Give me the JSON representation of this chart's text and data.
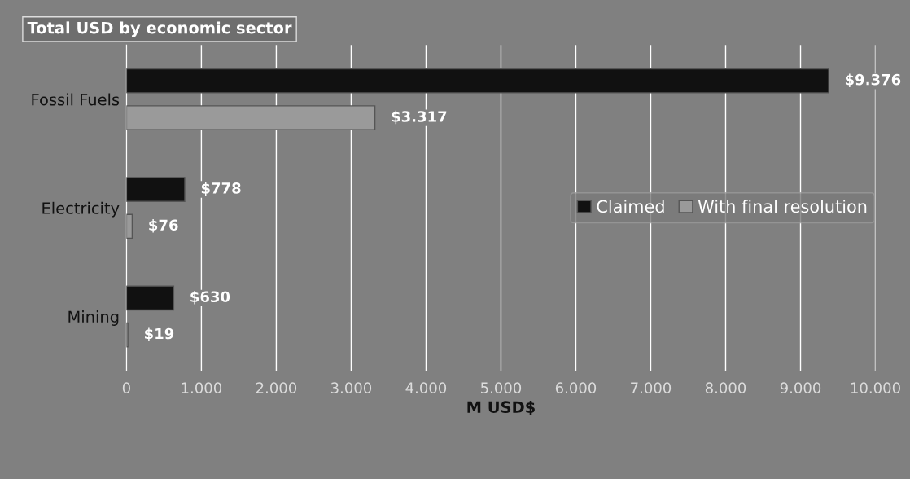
{
  "chart_data": {
    "type": "bar",
    "orientation": "horizontal",
    "title": "Total USD by economic sector",
    "xlabel": "M USD$",
    "categories": [
      "Fossil Fuels",
      "Electricity",
      "Mining"
    ],
    "series": [
      {
        "name": "Claimed",
        "color": "#111111",
        "values": [
          9376,
          778,
          630
        ],
        "value_labels": [
          "$9.376",
          "$778",
          "$630"
        ]
      },
      {
        "name": "With final resolution",
        "color": "#9a9a9a",
        "values": [
          3317,
          76,
          19
        ],
        "value_labels": [
          "$3.317",
          "$76",
          "$19"
        ]
      }
    ],
    "xlim": [
      0,
      10000
    ],
    "xticks": [
      0,
      {
        "value": 1000,
        "label": "1.000"
      },
      {
        "value": 2000,
        "label": "2.000"
      },
      {
        "value": 3000,
        "label": "3.000"
      },
      {
        "value": 4000,
        "label": "4.000"
      },
      {
        "value": 5000,
        "label": "5.000"
      },
      {
        "value": 6000,
        "label": "6.000"
      },
      {
        "value": 7000,
        "label": "7.000"
      },
      {
        "value": 8000,
        "label": "8.000"
      },
      {
        "value": 9000,
        "label": "9.000"
      },
      {
        "value": 10000,
        "label": "10.000"
      }
    ],
    "grid": "x",
    "legend": "right"
  }
}
